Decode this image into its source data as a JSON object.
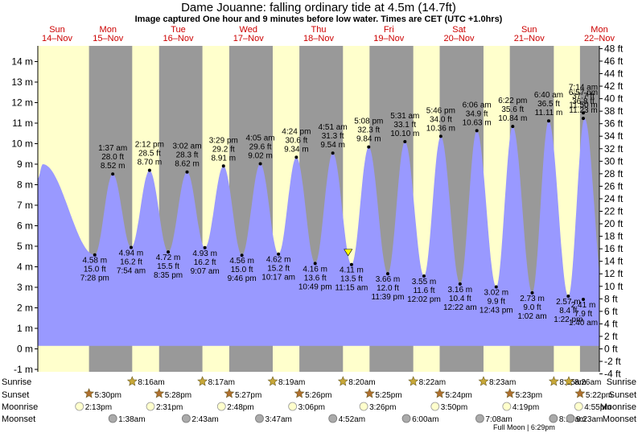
{
  "title": "Dame Jouanne: falling  ordinary tide at 4.5m (14.7ft)",
  "subtitle": "Image captured One hour and 9 minutes before low water. Times are CET (UTC +1.0hrs)",
  "colors": {
    "day": "#ffffcc",
    "night": "#999999",
    "tide": "#9999ff",
    "day_label": "#cc0000",
    "sun_star": "#c8a838",
    "sunset_star": "#b07030",
    "moonrise": "#ffffcc",
    "moonset": "#aaaaaa",
    "marker": "#ffff00"
  },
  "days": [
    {
      "name": "Sun",
      "date": "14–Nov"
    },
    {
      "name": "Mon",
      "date": "15–Nov"
    },
    {
      "name": "Tue",
      "date": "16–Nov"
    },
    {
      "name": "Wed",
      "date": "17–Nov"
    },
    {
      "name": "Thu",
      "date": "18–Nov"
    },
    {
      "name": "Fri",
      "date": "19–Nov"
    },
    {
      "name": "Sat",
      "date": "20–Nov"
    },
    {
      "name": "Sun",
      "date": "21–Nov"
    },
    {
      "name": "Mon",
      "date": "22–Nov"
    }
  ],
  "row_labels": {
    "sunrise": "Sunrise",
    "sunset": "Sunset",
    "moonrise": "Moonrise",
    "moonset": "Moonset"
  },
  "full_moon": "Full Moon | 6:29pm",
  "chart_data": {
    "type": "area",
    "x_unit": "hours from 00:00 Sun 14-Nov (CET)",
    "xlim": [
      0,
      192
    ],
    "ylim_m": [
      -1.2,
      14.8
    ],
    "ylim_ft": [
      -4,
      48
    ],
    "y_left_ticks": [
      -1,
      0,
      1,
      2,
      3,
      4,
      5,
      6,
      7,
      8,
      9,
      10,
      11,
      12,
      13,
      14
    ],
    "y_right_ticks": [
      -4,
      -2,
      0,
      2,
      4,
      6,
      8,
      10,
      12,
      14,
      16,
      18,
      20,
      22,
      24,
      26,
      28,
      30,
      32,
      34,
      36,
      38,
      40,
      42,
      44,
      46,
      48
    ],
    "left_unit": "m",
    "right_unit": "ft",
    "start_level_m": 8.3,
    "start_peak": {
      "t": 1.7,
      "h": 9.0
    },
    "end_level_m": 8.2,
    "base_level_m": 0.15,
    "extrema": [
      {
        "t": 19.47,
        "h": 4.58,
        "type": "low",
        "time": "7:28 pm",
        "m": "4.58 m",
        "ft": "15.0 ft"
      },
      {
        "t": 25.62,
        "h": 8.52,
        "type": "high",
        "time": "1:37 am",
        "m": "8.52 m",
        "ft": "28.0 ft"
      },
      {
        "t": 31.9,
        "h": 4.94,
        "type": "low",
        "time": "7:54 am",
        "m": "4.94 m",
        "ft": "16.2 ft"
      },
      {
        "t": 38.2,
        "h": 8.7,
        "type": "high",
        "time": "2:12 pm",
        "m": "8.70 m",
        "ft": "28.5 ft"
      },
      {
        "t": 44.58,
        "h": 4.72,
        "type": "low",
        "time": "8:35 pm",
        "m": "4.72 m",
        "ft": "15.5 ft"
      },
      {
        "t": 51.03,
        "h": 8.62,
        "type": "high",
        "time": "3:02 am",
        "m": "8.62 m",
        "ft": "28.3 ft"
      },
      {
        "t": 57.12,
        "h": 4.93,
        "type": "low",
        "time": "9:07 am",
        "m": "4.93 m",
        "ft": "16.2 ft"
      },
      {
        "t": 63.48,
        "h": 8.91,
        "type": "high",
        "time": "3:29 pm",
        "m": "8.91 m",
        "ft": "29.2 ft"
      },
      {
        "t": 69.77,
        "h": 4.56,
        "type": "low",
        "time": "9:46 pm",
        "m": "4.56 m",
        "ft": "15.0 ft"
      },
      {
        "t": 76.08,
        "h": 9.02,
        "type": "high",
        "time": "4:05 am",
        "m": "9.02 m",
        "ft": "29.6 ft"
      },
      {
        "t": 82.28,
        "h": 4.62,
        "type": "low",
        "time": "10:17 am",
        "m": "4.62 m",
        "ft": "15.2 ft"
      },
      {
        "t": 88.4,
        "h": 9.34,
        "type": "high",
        "time": "4:24 pm",
        "m": "9.34 m",
        "ft": "30.6 ft"
      },
      {
        "t": 94.82,
        "h": 4.16,
        "type": "low",
        "time": "10:49 pm",
        "m": "4.16 m",
        "ft": "13.6 ft"
      },
      {
        "t": 100.85,
        "h": 9.54,
        "type": "high",
        "time": "4:51 am",
        "m": "9.54 m",
        "ft": "31.3 ft"
      },
      {
        "t": 107.25,
        "h": 4.11,
        "type": "low",
        "time": "11:15 am",
        "m": "4.11 m",
        "ft": "13.5 ft"
      },
      {
        "t": 113.13,
        "h": 9.84,
        "type": "high",
        "time": "5:08 pm",
        "m": "9.84 m",
        "ft": "32.3 ft"
      },
      {
        "t": 119.65,
        "h": 3.66,
        "type": "low",
        "time": "11:39 pm",
        "m": "3.66 m",
        "ft": "12.0 ft"
      },
      {
        "t": 125.52,
        "h": 10.1,
        "type": "high",
        "time": "5:31 am",
        "m": "10.10 m",
        "ft": "33.1 ft"
      },
      {
        "t": 132.03,
        "h": 3.55,
        "type": "low",
        "time": "12:02 pm",
        "m": "3.55 m",
        "ft": "11.6 ft"
      },
      {
        "t": 137.77,
        "h": 10.36,
        "type": "high",
        "time": "5:46 pm",
        "m": "10.36 m",
        "ft": "34.0 ft"
      },
      {
        "t": 144.37,
        "h": 3.16,
        "type": "low",
        "time": "12:22 am",
        "m": "3.16 m",
        "ft": "10.4 ft"
      },
      {
        "t": 150.1,
        "h": 10.63,
        "type": "high",
        "time": "6:06 am",
        "m": "10.63 m",
        "ft": "34.9 ft"
      },
      {
        "t": 156.72,
        "h": 3.02,
        "type": "low",
        "time": "12:43 pm",
        "m": "3.02 m",
        "ft": "9.9 ft"
      },
      {
        "t": 162.37,
        "h": 10.84,
        "type": "high",
        "time": "6:22 pm",
        "m": "10.84 m",
        "ft": "35.6 ft"
      },
      {
        "t": 169.03,
        "h": 2.73,
        "type": "low",
        "time": "1:02 am",
        "m": "2.73 m",
        "ft": "9.0 ft"
      },
      {
        "t": 174.67,
        "h": 11.11,
        "type": "high",
        "time": "6:40 am",
        "m": "11.11 m",
        "ft": "36.5 ft"
      },
      {
        "t": 181.37,
        "h": 2.57,
        "type": "low",
        "time": "1:22 pm",
        "m": "2.57 m",
        "ft": "8.4 ft"
      },
      {
        "t": 186.95,
        "h": 11.23,
        "type": "high",
        "time": "6:57 pm",
        "m": "11.23 m",
        "ft": "36.8 ft"
      },
      {
        "t": 193.67,
        "h": 2.41,
        "type": "low",
        "time": "1:40 am",
        "m": "2.41 m",
        "ft": "7.9 ft"
      },
      {
        "t": 199.23,
        "h": 11.5,
        "type": "high",
        "time": "7:14 am",
        "m": "11.50 m",
        "ft": "37.7 ft"
      }
    ],
    "current": {
      "t": 106.1,
      "h": 4.5
    },
    "sunrise": [
      {
        "t": 32.27,
        "label": "8:16am"
      },
      {
        "t": 56.28,
        "label": "8:17am"
      },
      {
        "t": 80.32,
        "label": "8:19am"
      },
      {
        "t": 104.33,
        "label": "8:20am"
      },
      {
        "t": 128.37,
        "label": "8:22am"
      },
      {
        "t": 152.38,
        "label": "8:23am"
      },
      {
        "t": 176.42,
        "label": "8:25am"
      },
      {
        "t": 200.43,
        "label": "8:26am"
      }
    ],
    "sunset": [
      {
        "t": 17.5,
        "label": "5:30pm"
      },
      {
        "t": 41.47,
        "label": "5:28pm"
      },
      {
        "t": 65.45,
        "label": "5:27pm"
      },
      {
        "t": 89.43,
        "label": "5:26pm"
      },
      {
        "t": 113.42,
        "label": "5:25pm"
      },
      {
        "t": 137.4,
        "label": "5:24pm"
      },
      {
        "t": 161.38,
        "label": "5:23pm"
      },
      {
        "t": 185.37,
        "label": "5:22pm"
      }
    ],
    "moonrise": [
      {
        "t": 14.22,
        "label": "2:13pm"
      },
      {
        "t": 38.52,
        "label": "2:31pm"
      },
      {
        "t": 62.8,
        "label": "2:48pm"
      },
      {
        "t": 87.1,
        "label": "3:06pm"
      },
      {
        "t": 111.43,
        "label": "3:26pm"
      },
      {
        "t": 135.83,
        "label": "3:50pm"
      },
      {
        "t": 160.32,
        "label": "4:19pm"
      },
      {
        "t": 184.92,
        "label": "4:55pm"
      }
    ],
    "moonset": [
      {
        "t": 25.63,
        "label": "1:38am"
      },
      {
        "t": 50.72,
        "label": "2:43am"
      },
      {
        "t": 75.78,
        "label": "3:47am"
      },
      {
        "t": 100.87,
        "label": "4:52am"
      },
      {
        "t": 126.0,
        "label": "6:00am"
      },
      {
        "t": 151.13,
        "label": "7:08am"
      },
      {
        "t": 176.28,
        "label": "8:17am"
      },
      {
        "t": 201.38,
        "label": "9:23am"
      }
    ]
  }
}
